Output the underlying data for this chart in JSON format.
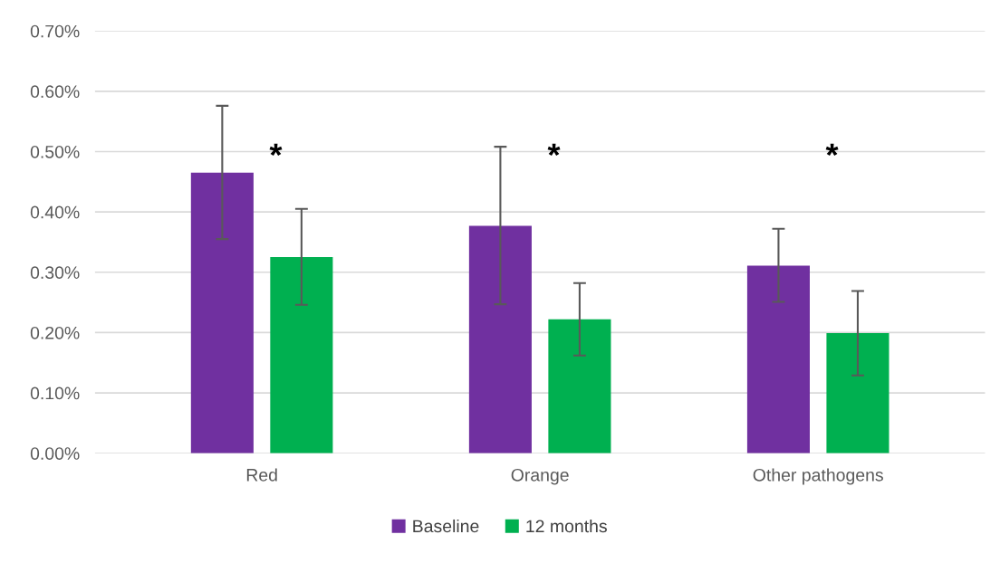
{
  "chart_data": {
    "type": "bar",
    "categories": [
      "Red",
      "Orange",
      "Other pathogens"
    ],
    "series": [
      {
        "name": "Baseline",
        "color": "#7030a0",
        "values": [
          0.465,
          0.377,
          0.311
        ],
        "errors": [
          [
            0.355,
            0.576
          ],
          [
            0.247,
            0.508
          ],
          [
            0.251,
            0.372
          ]
        ]
      },
      {
        "name": "12 months",
        "color": "#00b050",
        "values": [
          0.325,
          0.222,
          0.199
        ],
        "errors": [
          [
            0.246,
            0.405
          ],
          [
            0.162,
            0.282
          ],
          [
            0.129,
            0.269
          ]
        ]
      }
    ],
    "ylim": [
      0,
      0.7
    ],
    "yticks": [
      {
        "value": 0,
        "label": "0.00%"
      },
      {
        "value": 0.1,
        "label": "0.10%"
      },
      {
        "value": 0.2,
        "label": "0.20%"
      },
      {
        "value": 0.3,
        "label": "0.30%"
      },
      {
        "value": 0.4,
        "label": "0.40%"
      },
      {
        "value": 0.5,
        "label": "0.50%"
      },
      {
        "value": 0.6,
        "label": "0.60%"
      },
      {
        "value": 0.7,
        "label": "0.70%"
      }
    ],
    "annotations": [
      "*",
      "*",
      "*"
    ],
    "grid": "y",
    "legend": "bottom"
  }
}
